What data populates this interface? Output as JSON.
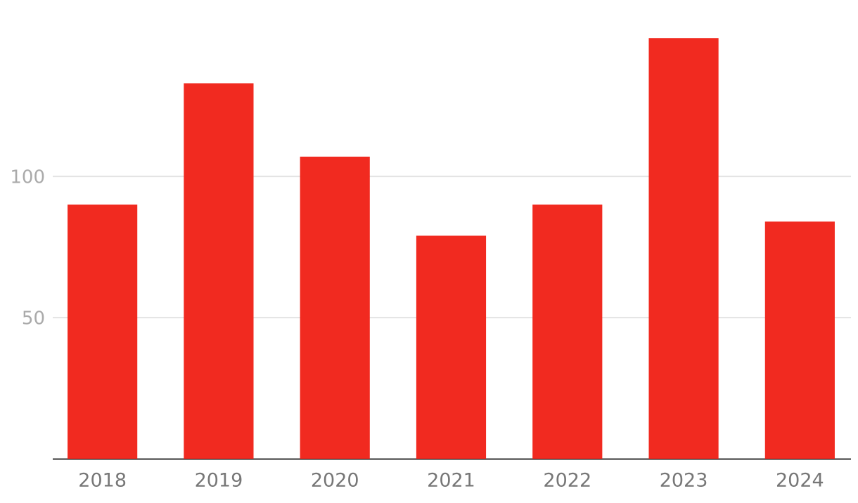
{
  "chart_data": {
    "type": "bar",
    "categories": [
      "2018",
      "2019",
      "2020",
      "2021",
      "2022",
      "2023",
      "2024"
    ],
    "values": [
      90,
      133,
      107,
      79,
      90,
      149,
      84
    ],
    "color": "#f12a20",
    "ylim": [
      0,
      160
    ],
    "yticks": [
      50,
      100
    ],
    "grid": true
  }
}
